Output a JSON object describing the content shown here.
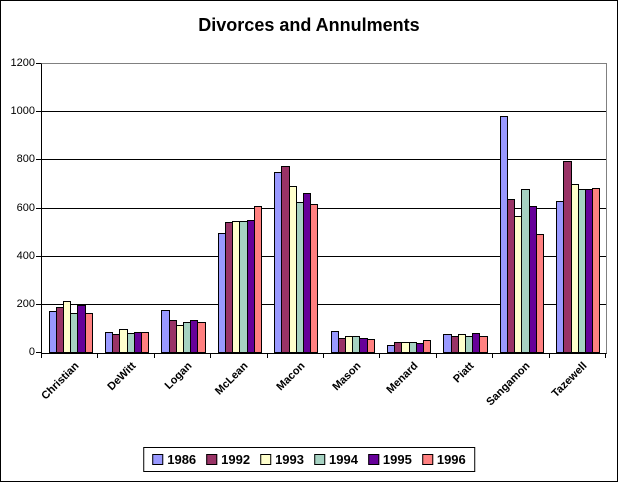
{
  "title": "Divorces and Annulments",
  "chart_data": {
    "type": "bar",
    "title": "Divorces and Annulments",
    "categories": [
      "Christian",
      "DeWitt",
      "Logan",
      "McLean",
      "Macon",
      "Mason",
      "Menard",
      "Piatt",
      "Sangamon",
      "Tazewell"
    ],
    "series": [
      {
        "name": "1986",
        "color": "#9999FF",
        "values": [
          175,
          87,
          178,
          500,
          750,
          93,
          35,
          80,
          983,
          632
        ]
      },
      {
        "name": "1992",
        "color": "#993366",
        "values": [
          190,
          78,
          136,
          545,
          775,
          62,
          46,
          72,
          640,
          797
        ]
      },
      {
        "name": "1993",
        "color": "#FFFFCC",
        "values": [
          215,
          98,
          115,
          550,
          695,
          70,
          45,
          80,
          570,
          703
        ]
      },
      {
        "name": "1994",
        "color": "#A6D2C2",
        "values": [
          165,
          83,
          130,
          550,
          625,
          70,
          45,
          72,
          680,
          680
        ]
      },
      {
        "name": "1995",
        "color": "#660099",
        "values": [
          198,
          87,
          137,
          552,
          665,
          62,
          41,
          81,
          610,
          680
        ]
      },
      {
        "name": "1996",
        "color": "#FF8080",
        "values": [
          165,
          87,
          127,
          610,
          620,
          57,
          53,
          69,
          495,
          685
        ]
      }
    ],
    "ylim": [
      0,
      1200
    ],
    "yticks": [
      0,
      200,
      400,
      600,
      800,
      1000,
      1200
    ],
    "grid": true,
    "legend_position": "bottom",
    "axis_color": "#000000",
    "plot_border_color": "#808080"
  }
}
